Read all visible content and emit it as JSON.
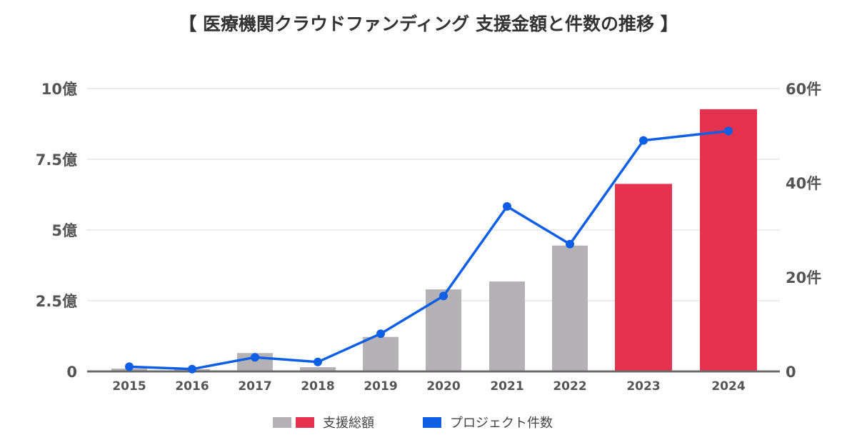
{
  "title": "【 医療機関クラウドファンディング 支援金額と件数の推移 】",
  "chart_data": {
    "type": "bar",
    "categories": [
      "2015",
      "2016",
      "2017",
      "2018",
      "2019",
      "2020",
      "2021",
      "2022",
      "2023",
      "2024"
    ],
    "series": [
      {
        "name": "支援総額",
        "kind": "bar",
        "axis": "left",
        "unit": "億",
        "values": [
          0.1,
          0.08,
          0.65,
          0.15,
          1.22,
          2.9,
          3.18,
          4.45,
          6.63,
          9.27
        ],
        "colors": [
          "#b4b2b5",
          "#b4b2b5",
          "#b4b2b5",
          "#b4b2b5",
          "#b4b2b5",
          "#b4b2b5",
          "#b4b2b5",
          "#b4b2b5",
          "#e5334f",
          "#e5334f"
        ]
      },
      {
        "name": "プロジェクト件数",
        "kind": "line",
        "axis": "right",
        "unit": "件",
        "values": [
          1,
          0.5,
          3,
          2,
          8,
          16,
          35,
          27,
          49,
          51
        ],
        "color": "#0f5fe6"
      }
    ],
    "y_left": {
      "min": 0,
      "max": 10,
      "ticks": [
        "0",
        "2.5億",
        "5億",
        "7.5億",
        "10億"
      ],
      "tick_values": [
        0,
        2.5,
        5,
        7.5,
        10
      ]
    },
    "y_right": {
      "min": 0,
      "max": 60,
      "ticks": [
        "0",
        "20件",
        "40件",
        "60件"
      ],
      "tick_values": [
        0,
        20,
        40,
        60
      ]
    },
    "grid": true,
    "legend": {
      "placement": "bottom",
      "items": [
        {
          "label": "支援総額",
          "swatches": [
            "#b4b2b5",
            "#e5334f"
          ]
        },
        {
          "label": "プロジェクト件数",
          "swatches": [
            "#0f5fe6"
          ]
        }
      ]
    }
  }
}
